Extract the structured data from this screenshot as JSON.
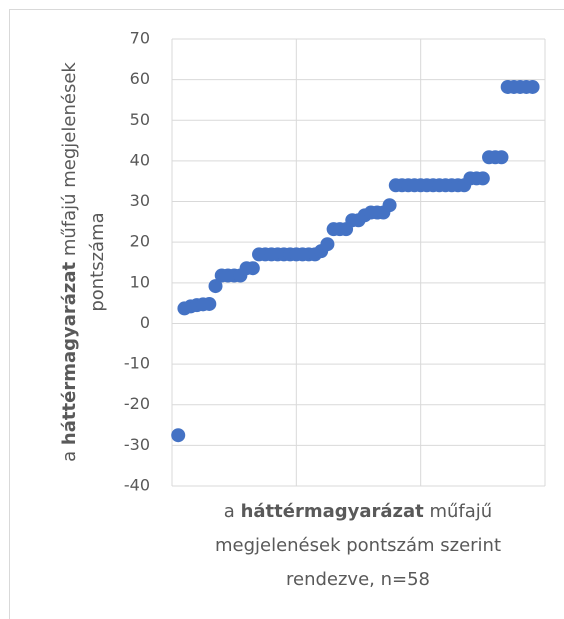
{
  "chart_data": {
    "type": "scatter",
    "x": [
      1,
      2,
      3,
      4,
      5,
      6,
      7,
      8,
      9,
      10,
      11,
      12,
      13,
      14,
      15,
      16,
      17,
      18,
      19,
      20,
      21,
      22,
      23,
      24,
      25,
      26,
      27,
      28,
      29,
      30,
      31,
      32,
      33,
      34,
      35,
      36,
      37,
      38,
      39,
      40,
      41,
      42,
      43,
      44,
      45,
      46,
      47,
      48,
      49,
      50,
      51,
      52,
      53,
      54,
      55,
      56,
      57,
      58
    ],
    "values": [
      -27.5,
      3.7,
      4.2,
      4.5,
      4.7,
      4.8,
      9.2,
      11.8,
      11.8,
      11.8,
      11.8,
      13.6,
      13.6,
      17,
      17,
      17,
      17,
      17,
      17,
      17,
      17,
      17,
      17,
      17.8,
      19.5,
      23.2,
      23.2,
      23.2,
      25.4,
      25.4,
      26.6,
      27.3,
      27.3,
      27.3,
      29.1,
      34,
      34,
      34,
      34,
      34,
      34,
      34,
      34,
      34,
      34,
      34,
      34,
      35.7,
      35.7,
      35.7,
      40.9,
      40.9,
      40.9,
      58.2,
      58.2,
      58.2,
      58.2,
      58.2
    ],
    "color": "#4472c4",
    "xlim": [
      0,
      60
    ],
    "xticks": [
      0,
      20,
      40,
      60
    ],
    "ylim": [
      -40,
      70
    ],
    "yticks": [
      -40,
      -30,
      -20,
      -10,
      0,
      10,
      20,
      30,
      40,
      50,
      60,
      70
    ],
    "grid": true,
    "y_label": [
      [
        {
          "text": "a ",
          "bold": false
        },
        {
          "text": "háttérmagyarázat",
          "bold": true
        },
        {
          "text": "  műfajú megjelenések",
          "bold": false
        }
      ],
      [
        {
          "text": "pontszáma",
          "bold": false
        }
      ]
    ],
    "x_label": [
      [
        {
          "text": "a ",
          "bold": false
        },
        {
          "text": "háttérmagyarázat",
          "bold": true
        },
        {
          "text": " műfajű",
          "bold": false
        }
      ],
      [
        {
          "text": "megjelenések pontszám szerint",
          "bold": false
        }
      ],
      [
        {
          "text": "rendezve, n=58",
          "bold": false
        }
      ]
    ]
  }
}
